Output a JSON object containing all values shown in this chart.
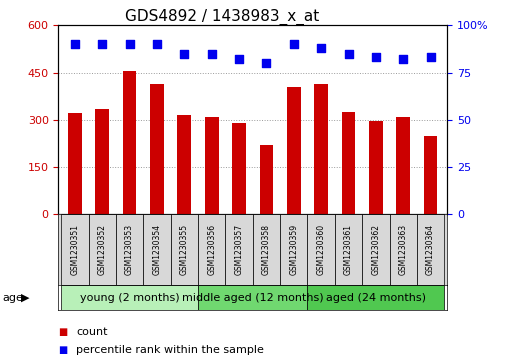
{
  "title": "GDS4892 / 1438983_x_at",
  "samples": [
    "GSM1230351",
    "GSM1230352",
    "GSM1230353",
    "GSM1230354",
    "GSM1230355",
    "GSM1230356",
    "GSM1230357",
    "GSM1230358",
    "GSM1230359",
    "GSM1230360",
    "GSM1230361",
    "GSM1230362",
    "GSM1230363",
    "GSM1230364"
  ],
  "counts": [
    320,
    335,
    455,
    415,
    315,
    310,
    290,
    220,
    405,
    415,
    325,
    295,
    310,
    250
  ],
  "percentile_ranks": [
    90,
    90,
    90,
    90,
    85,
    85,
    82,
    80,
    90,
    88,
    85,
    83,
    82,
    83
  ],
  "groups": [
    {
      "label": "young (2 months)",
      "start": 0,
      "end": 5,
      "color": "#b8f0b8"
    },
    {
      "label": "middle aged (12 months)",
      "start": 5,
      "end": 9,
      "color": "#70d870"
    },
    {
      "label": "aged (24 months)",
      "start": 9,
      "end": 14,
      "color": "#50c850"
    }
  ],
  "ylim_left": [
    0,
    600
  ],
  "ylim_right": [
    0,
    100
  ],
  "yticks_left": [
    0,
    150,
    300,
    450,
    600
  ],
  "yticks_right": [
    0,
    25,
    50,
    75,
    100
  ],
  "ytick_labels_right": [
    "0",
    "25",
    "50",
    "75",
    "100%"
  ],
  "bar_color": "#CC0000",
  "dot_color": "#0000EE",
  "bar_width": 0.5,
  "dot_size": 40,
  "dot_marker": "s",
  "left_tick_color": "#CC0000",
  "right_tick_color": "#0000EE",
  "title_fontsize": 11,
  "tick_fontsize": 8,
  "legend_fontsize": 8,
  "group_label_fontsize": 8,
  "sample_fontsize": 5.5,
  "age_label": "age",
  "background_color": "#ffffff",
  "plot_bg_color": "#ffffff",
  "cell_bg_color": "#d8d8d8",
  "grid_color": "#000000",
  "grid_alpha": 0.4,
  "grid_linestyle": ":"
}
